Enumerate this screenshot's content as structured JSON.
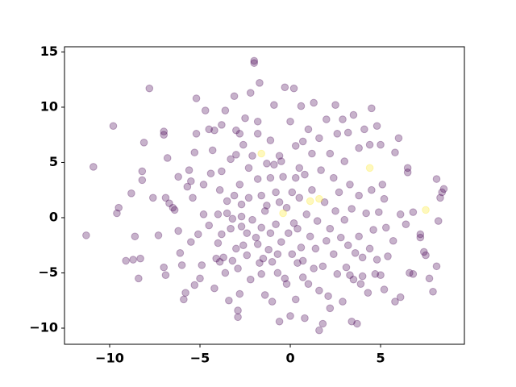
{
  "chart_data": {
    "type": "scatter",
    "xlim": [
      -12.5,
      9.64
    ],
    "ylim": [
      -11.46,
      15.47
    ],
    "xticks": [
      {
        "value": -10,
        "label": "−10"
      },
      {
        "value": -5,
        "label": "−5"
      },
      0,
      5
    ],
    "yticks": [
      {
        "value": -10,
        "label": "−10"
      },
      {
        "value": -5,
        "label": "−5"
      },
      0,
      5,
      10,
      15
    ],
    "alpha": 0.3,
    "series": [
      {
        "color": "#440154",
        "x": [
          -11.3,
          -10.9,
          -9.8,
          -9.6,
          -9.5,
          -9.1,
          -8.8,
          -8.7,
          -8.6,
          -8.4,
          -8.3,
          -8.2,
          -8.2,
          -8.1,
          -7.8,
          -7.6,
          -7.3,
          -7.0,
          -6.9,
          -7.0,
          -7.0,
          -6.9,
          -6.8,
          -6.7,
          -6.5,
          -6.4,
          -6.2,
          -6.2,
          -6.1,
          -6.0,
          -5.9,
          -5.8,
          -5.7,
          -5.6,
          -5.5,
          -5.5,
          -5.4,
          -5.3,
          -5.3,
          -5.2,
          -5.2,
          -5.1,
          -5.0,
          -4.9,
          -4.8,
          -4.8,
          -4.7,
          -4.5,
          -4.5,
          -4.4,
          -4.3,
          -4.2,
          -4.2,
          -4.1,
          -4.0,
          -4.0,
          -3.9,
          -3.9,
          -3.8,
          -3.8,
          -3.8,
          -3.7,
          -3.6,
          -3.6,
          -3.5,
          -3.5,
          -3.4,
          -3.3,
          -3.3,
          -3.2,
          -3.2,
          -3.1,
          -3.1,
          -3.0,
          -3.0,
          -3.0,
          -2.9,
          -2.9,
          -2.9,
          -2.8,
          -2.8,
          -2.8,
          -2.7,
          -2.7,
          -2.7,
          -2.6,
          -2.6,
          -2.5,
          -2.4,
          -2.4,
          -2.3,
          -2.3,
          -2.2,
          -2.2,
          -2.1,
          -2.1,
          -2.0,
          -2.0,
          -1.9,
          -1.8,
          -1.8,
          -1.8,
          -1.8,
          -1.7,
          -1.7,
          -1.6,
          -1.6,
          -1.6,
          -1.5,
          -1.4,
          -1.4,
          -1.3,
          -1.3,
          -1.2,
          -1.1,
          -1.1,
          -1.1,
          -1.0,
          -1.0,
          -0.9,
          -0.9,
          -0.8,
          -0.8,
          -0.7,
          -0.7,
          -0.6,
          -0.6,
          -0.6,
          -0.5,
          -0.5,
          -0.4,
          -0.3,
          -0.3,
          -0.2,
          -0.2,
          -0.1,
          0.0,
          0.0,
          0.1,
          0.1,
          0.2,
          0.2,
          0.3,
          0.3,
          0.3,
          0.4,
          0.4,
          0.5,
          0.5,
          0.6,
          0.6,
          0.7,
          0.7,
          0.7,
          0.8,
          0.8,
          0.9,
          1.0,
          1.0,
          1.1,
          1.2,
          1.2,
          1.3,
          1.3,
          1.4,
          1.5,
          1.6,
          1.6,
          1.6,
          1.7,
          1.8,
          1.8,
          1.9,
          2.0,
          2.0,
          2.1,
          2.2,
          2.2,
          2.2,
          2.4,
          2.4,
          2.5,
          2.5,
          2.6,
          2.6,
          2.7,
          2.8,
          2.9,
          2.9,
          3.0,
          3.0,
          3.1,
          3.2,
          3.2,
          3.3,
          3.3,
          3.4,
          3.4,
          3.5,
          3.5,
          3.6,
          3.7,
          3.8,
          3.8,
          3.8,
          3.9,
          4.0,
          4.0,
          4.1,
          4.2,
          4.3,
          4.4,
          4.4,
          4.5,
          4.5,
          4.6,
          4.7,
          4.8,
          4.8,
          4.9,
          5.0,
          5.0,
          5.1,
          5.2,
          5.2,
          5.3,
          5.4,
          5.7,
          5.8,
          5.8,
          6.0,
          6.1,
          6.1,
          6.4,
          6.5,
          6.5,
          6.6,
          6.8,
          6.8,
          7.2,
          7.2,
          7.4,
          7.5,
          7.7,
          7.9,
          8.1,
          8.1,
          8.2,
          8.3,
          8.4,
          8.5
        ],
        "values": [
          -1.6,
          4.6,
          8.3,
          0.4,
          0.9,
          -3.9,
          2.2,
          -3.8,
          -1.7,
          -5.5,
          -3.7,
          4.2,
          3.4,
          6.8,
          11.7,
          1.8,
          -1.6,
          -4.5,
          -5.2,
          7.8,
          7.5,
          1.8,
          5.4,
          1.3,
          0.9,
          0.7,
          3.7,
          -1.2,
          -3.2,
          -4.3,
          -7.4,
          -6.8,
          2.8,
          4.3,
          3.3,
          -2.2,
          1.8,
          -6.1,
          5.9,
          7.6,
          10.8,
          -1.5,
          -5.5,
          -4.3,
          0.3,
          3.0,
          9.7,
          8.0,
          -0.7,
          4.0,
          6.1,
          -6.4,
          7.9,
          -3.7,
          0.3,
          -2.3,
          -4.0,
          2.5,
          8.4,
          4.2,
          -1.5,
          -3.6,
          9.7,
          -5.0,
          1.5,
          0.4,
          -7.5,
          5.3,
          -1.0,
          -3.9,
          -0.1,
          11.0,
          2.0,
          7.9,
          5.7,
          -2.8,
          -9.0,
          -8.4,
          -4.6,
          7.6,
          3.0,
          -6.9,
          1.2,
          0.1,
          -0.8,
          -2.5,
          6.6,
          9.0,
          -1.4,
          -3.4,
          4.5,
          1.8,
          11.3,
          -5.6,
          5.6,
          -0.2,
          14.2,
          14.0,
          -1.8,
          8.7,
          7.6,
          3.5,
          -2.4,
          -4.1,
          12.2,
          2.0,
          -0.9,
          -5.1,
          -3.7,
          -7.0,
          0.6,
          4.9,
          1.1,
          -2.9,
          7.0,
          3.6,
          -1.4,
          -4.0,
          -7.6,
          4.8,
          10.2,
          2.3,
          -0.6,
          -5.0,
          -3.3,
          5.6,
          1.4,
          -9.4,
          5.1,
          -2.2,
          3.7,
          11.8,
          -5.5,
          -6.0,
          0.9,
          -1.4,
          -8.9,
          8.7,
          2.3,
          -3.3,
          11.7,
          -0.5,
          6.5,
          3.6,
          -7.4,
          -4.1,
          -1.0,
          4.5,
          1.8,
          10.1,
          -2.7,
          -3.9,
          6.9,
          -5.4,
          3.9,
          -9.1,
          0.3,
          8.0,
          -6.0,
          -1.7,
          5.8,
          2.5,
          -4.6,
          10.4,
          -2.8,
          -0.3,
          7.2,
          -10.2,
          -6.6,
          4.3,
          -4.4,
          -9.6,
          1.4,
          8.9,
          -2.1,
          -7.1,
          5.8,
          -1.0,
          -8.2,
          3.6,
          -3.3,
          10.2,
          0.6,
          7.6,
          -5.1,
          2.3,
          -1.8,
          8.9,
          -7.6,
          5.1,
          -0.2,
          -4.5,
          -2.5,
          7.7,
          3.0,
          -5.2,
          0.8,
          -9.4,
          9.3,
          -5.6,
          -3.2,
          -9.6,
          6.3,
          2.0,
          -1.7,
          -6.0,
          -3.6,
          -5.3,
          8.0,
          0.4,
          -6.8,
          6.6,
          -2.8,
          9.9,
          2.5,
          -1.1,
          -5.1,
          -3.8,
          8.3,
          0.5,
          6.6,
          -5.2,
          3.0,
          1.7,
          -6.5,
          -0.9,
          -3.5,
          -2.1,
          5.9,
          -7.6,
          7.2,
          0.3,
          -7.2,
          -0.6,
          4.5,
          4.1,
          -5.0,
          0.5,
          -5.1,
          -1.5,
          -1.8,
          -3.1,
          -3.4,
          -5.5,
          -6.7,
          3.5,
          -4.4,
          -0.3,
          1.8,
          2.3,
          2.6
        ]
      },
      {
        "color": "#fde725",
        "x": [
          -1.6,
          4.4,
          1.1,
          1.6,
          7.5,
          -0.4
        ],
        "values": [
          5.8,
          4.5,
          1.5,
          1.7,
          0.7,
          0.4
        ]
      }
    ]
  }
}
